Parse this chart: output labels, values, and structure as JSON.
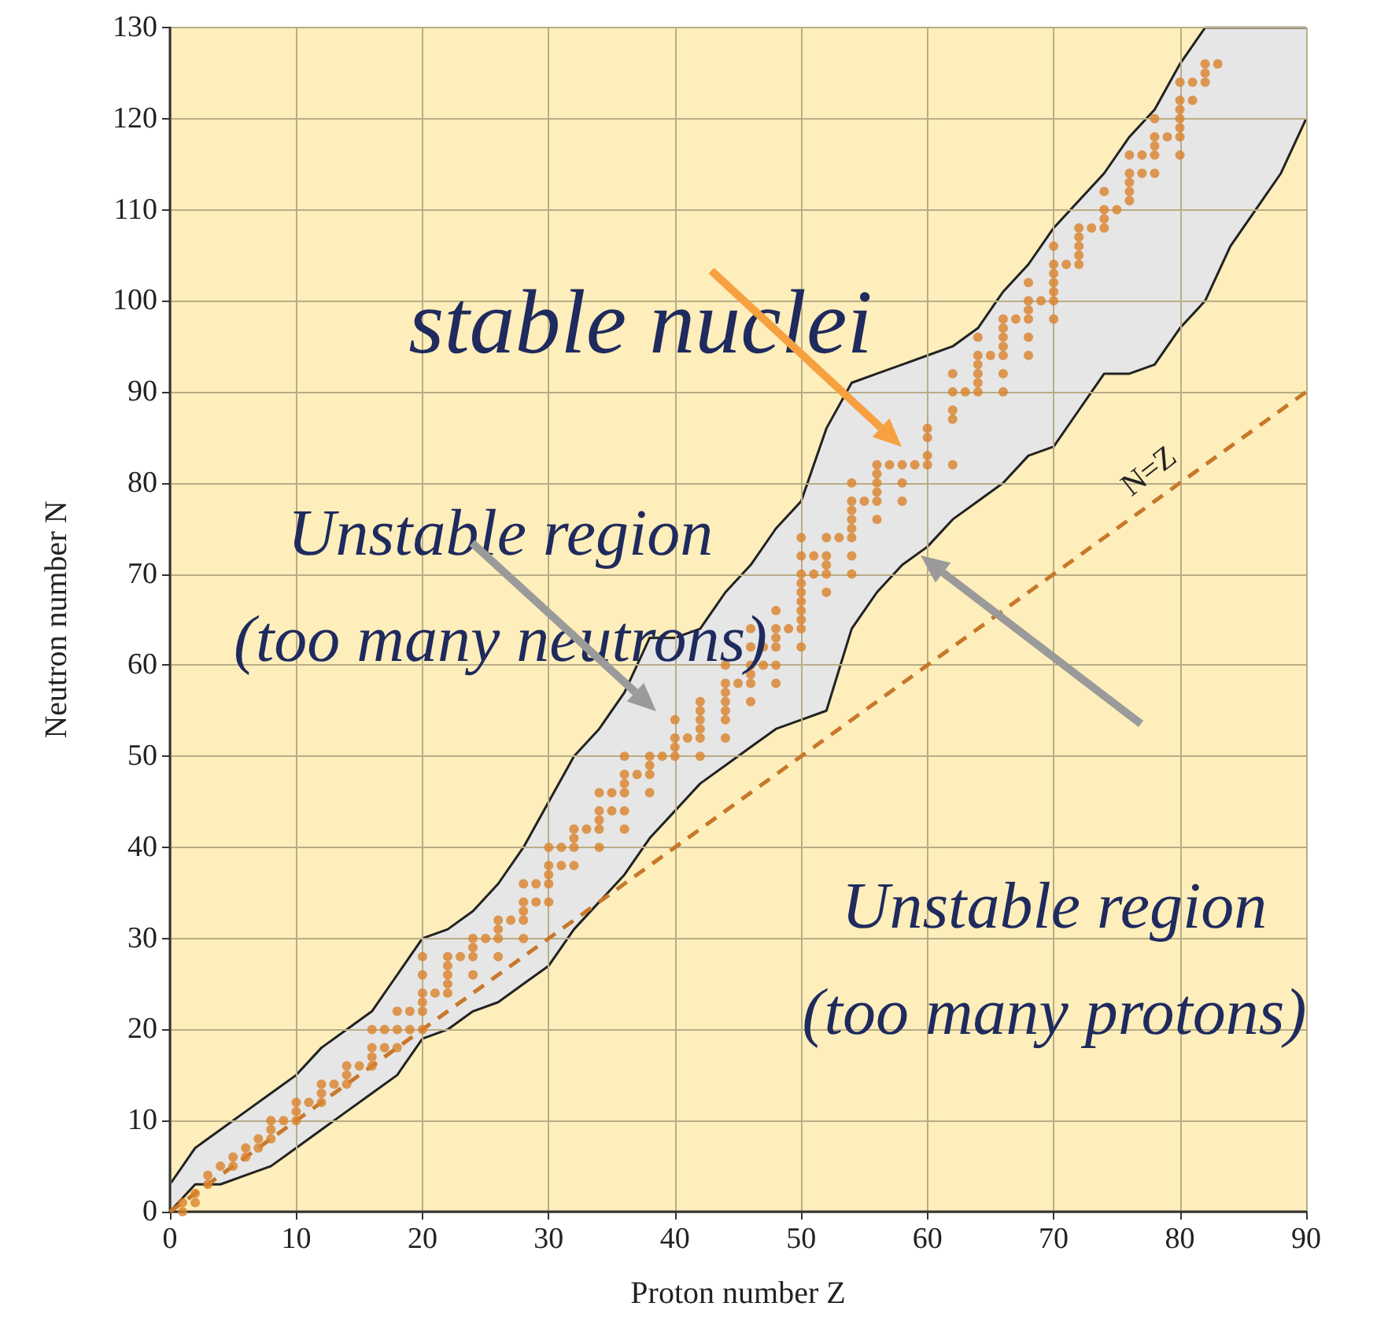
{
  "chart_data": {
    "type": "scatter",
    "xlabel": "Proton number Z",
    "ylabel": "Neutron number N",
    "xlim": [
      0,
      90
    ],
    "ylim": [
      0,
      130
    ],
    "xticks": [
      0,
      10,
      20,
      30,
      40,
      50,
      60,
      70,
      80,
      90
    ],
    "yticks": [
      0,
      10,
      20,
      30,
      40,
      50,
      60,
      70,
      80,
      90,
      100,
      110,
      120,
      130
    ],
    "grid": true,
    "legend": false,
    "series": [
      {
        "type": "area",
        "color": "#e6e6e6",
        "x": [
          0,
          2,
          4,
          6,
          8,
          10,
          12,
          14,
          16,
          18,
          20,
          22,
          24,
          26,
          28,
          30,
          32,
          34,
          36,
          38,
          40,
          42,
          44,
          46,
          48,
          50,
          52,
          54,
          56,
          58,
          60,
          62,
          64,
          66,
          68,
          70,
          72,
          74,
          76,
          78,
          80,
          82,
          84,
          86,
          88,
          90
        ],
        "values": [
          3,
          7,
          9,
          11,
          13,
          15,
          18,
          20,
          22,
          26,
          30,
          31,
          33,
          36,
          40,
          45,
          50,
          53,
          57,
          63,
          63,
          64,
          68,
          71,
          75,
          78,
          86,
          91,
          92,
          93,
          94,
          95,
          97,
          101,
          104,
          108,
          111,
          114,
          118,
          121,
          126,
          130,
          130,
          130,
          130,
          130
        ]
      },
      {
        "type": "area",
        "color": "#fdeebb",
        "x": [
          0,
          2,
          4,
          6,
          8,
          10,
          12,
          14,
          16,
          18,
          20,
          22,
          24,
          26,
          28,
          30,
          32,
          34,
          36,
          38,
          40,
          42,
          44,
          46,
          48,
          50,
          52,
          54,
          56,
          58,
          60,
          62,
          64,
          66,
          68,
          70,
          72,
          74,
          76,
          78,
          80,
          82,
          84,
          86,
          88,
          90
        ],
        "values": [
          0,
          3,
          3,
          4,
          5,
          7,
          9,
          11,
          13,
          15,
          19,
          20,
          22,
          23,
          25,
          27,
          31,
          34,
          37,
          41,
          44,
          47,
          49,
          51,
          53,
          54,
          55,
          64,
          68,
          71,
          73,
          76,
          78,
          80,
          83,
          84,
          88,
          92,
          92,
          93,
          97,
          100,
          106,
          110,
          114,
          120
        ]
      },
      {
        "type": "line",
        "name": "N=Z",
        "color": "#c8782a",
        "line_style": "dashed",
        "x": [
          0,
          80,
          90
        ],
        "values": [
          0,
          80,
          90
        ]
      },
      {
        "marker": "circle",
        "color": "#d9822b",
        "x": [
          1,
          1,
          2,
          2,
          3,
          3,
          4,
          5,
          5,
          6,
          6,
          7,
          7,
          8,
          8,
          8,
          9,
          10,
          10,
          10,
          11,
          12,
          12,
          12,
          13,
          14,
          14,
          14,
          15,
          16,
          16,
          16,
          16,
          17,
          17,
          18,
          18,
          18,
          19,
          19,
          20,
          20,
          20,
          20,
          20,
          20,
          21,
          22,
          22,
          22,
          22,
          22,
          23,
          24,
          24,
          24,
          24,
          25,
          26,
          26,
          26,
          26,
          27,
          28,
          28,
          28,
          28,
          28,
          29,
          29,
          30,
          30,
          30,
          30,
          30,
          31,
          31,
          32,
          32,
          32,
          32,
          33,
          34,
          34,
          34,
          34,
          34,
          35,
          35,
          36,
          36,
          36,
          36,
          36,
          36,
          37,
          38,
          38,
          38,
          38,
          39,
          40,
          40,
          40,
          40,
          41,
          42,
          42,
          42,
          42,
          42,
          42,
          44,
          44,
          44,
          44,
          44,
          44,
          44,
          45,
          46,
          46,
          46,
          46,
          46,
          46,
          47,
          47,
          48,
          48,
          48,
          48,
          48,
          48,
          49,
          50,
          50,
          50,
          50,
          50,
          50,
          50,
          50,
          50,
          50,
          51,
          51,
          52,
          52,
          52,
          52,
          52,
          53,
          54,
          54,
          54,
          54,
          54,
          54,
          54,
          54,
          55,
          56,
          56,
          56,
          56,
          56,
          56,
          57,
          58,
          58,
          58,
          59,
          60,
          60,
          60,
          60,
          62,
          62,
          62,
          62,
          62,
          63,
          64,
          64,
          64,
          64,
          64,
          64,
          65,
          66,
          66,
          66,
          66,
          66,
          66,
          66,
          67,
          68,
          68,
          68,
          68,
          68,
          68,
          69,
          70,
          70,
          70,
          70,
          70,
          70,
          70,
          71,
          72,
          72,
          72,
          72,
          72,
          73,
          74,
          74,
          74,
          74,
          75,
          76,
          76,
          76,
          76,
          76,
          77,
          77,
          78,
          78,
          78,
          78,
          78,
          79,
          80,
          80,
          80,
          80,
          80,
          80,
          80,
          81,
          81,
          82,
          82,
          82,
          83
        ],
        "values": [
          0,
          1,
          1,
          2,
          3,
          4,
          5,
          5,
          6,
          6,
          7,
          7,
          8,
          8,
          9,
          10,
          10,
          10,
          11,
          12,
          12,
          12,
          13,
          14,
          14,
          14,
          15,
          16,
          16,
          16,
          17,
          18,
          20,
          18,
          20,
          18,
          20,
          22,
          20,
          22,
          20,
          22,
          23,
          24,
          26,
          28,
          24,
          24,
          25,
          26,
          27,
          28,
          28,
          26,
          28,
          29,
          30,
          30,
          28,
          30,
          31,
          32,
          32,
          30,
          32,
          33,
          34,
          36,
          34,
          36,
          34,
          36,
          37,
          38,
          40,
          38,
          40,
          38,
          40,
          41,
          42,
          42,
          40,
          42,
          43,
          44,
          46,
          44,
          46,
          42,
          44,
          46,
          47,
          48,
          50,
          48,
          46,
          48,
          49,
          50,
          50,
          50,
          51,
          52,
          54,
          52,
          50,
          52,
          53,
          54,
          55,
          56,
          52,
          54,
          55,
          56,
          57,
          58,
          60,
          58,
          56,
          58,
          59,
          60,
          62,
          64,
          60,
          62,
          58,
          60,
          62,
          63,
          64,
          66,
          64,
          62,
          64,
          65,
          66,
          67,
          68,
          69,
          70,
          72,
          74,
          70,
          72,
          68,
          70,
          71,
          72,
          74,
          74,
          70,
          72,
          74,
          75,
          76,
          77,
          78,
          80,
          78,
          76,
          78,
          79,
          80,
          81,
          82,
          82,
          78,
          80,
          82,
          82,
          82,
          83,
          85,
          86,
          82,
          87,
          88,
          90,
          92,
          90,
          90,
          91,
          92,
          93,
          94,
          96,
          94,
          90,
          92,
          94,
          95,
          96,
          97,
          98,
          98,
          94,
          96,
          98,
          99,
          100,
          102,
          100,
          98,
          100,
          101,
          102,
          103,
          104,
          106,
          104,
          104,
          105,
          106,
          107,
          108,
          108,
          108,
          109,
          110,
          112,
          110,
          111,
          112,
          113,
          114,
          116,
          114,
          116,
          114,
          116,
          117,
          118,
          120,
          118,
          116,
          118,
          119,
          120,
          121,
          122,
          124,
          122,
          124,
          124,
          125,
          126,
          126
        ]
      }
    ],
    "annotations": [
      "stable nuclei",
      "Unstable region\n(too many neutrons)",
      "Unstable region\n(too many protons)"
    ]
  }
}
